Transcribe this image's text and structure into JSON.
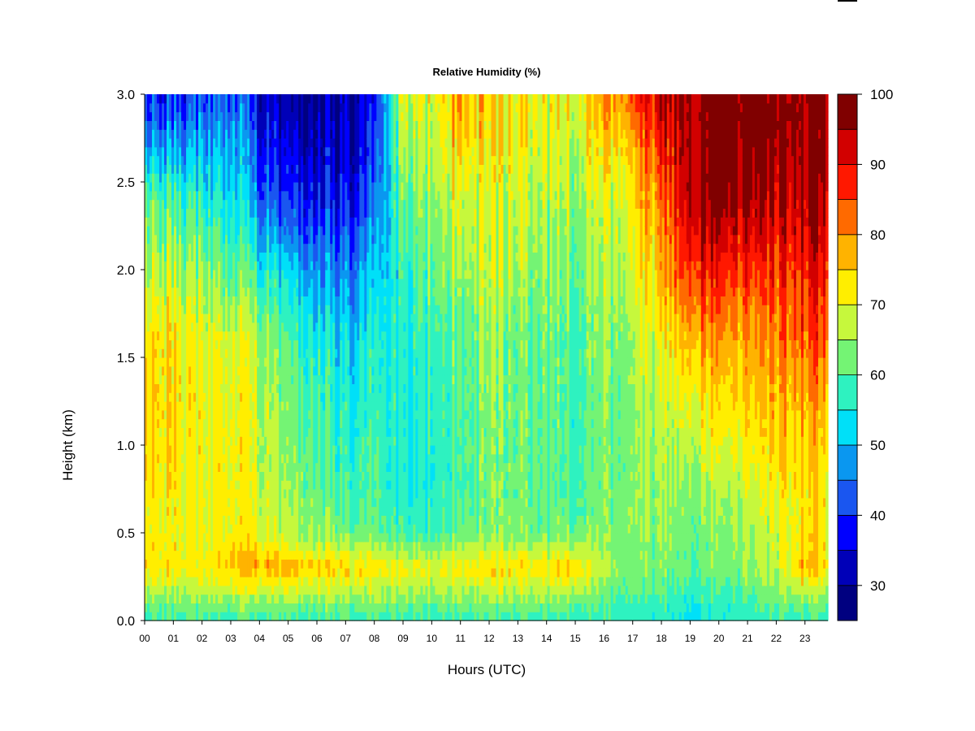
{
  "chart_data": {
    "type": "heatmap",
    "title": "Relative Humidity (%)",
    "xlabel": "Hours (UTC)",
    "ylabel": "Height (km)",
    "x_ticks": [
      "00",
      "01",
      "02",
      "03",
      "04",
      "05",
      "06",
      "07",
      "08",
      "09",
      "10",
      "11",
      "12",
      "13",
      "14",
      "15",
      "16",
      "17",
      "18",
      "19",
      "20",
      "21",
      "22",
      "23"
    ],
    "xlim": [
      0,
      23.8
    ],
    "ylim": [
      0,
      3.0
    ],
    "y_ticks": [
      "0.0",
      "0.5",
      "1.0",
      "1.5",
      "2.0",
      "2.5",
      "3.0"
    ],
    "colorbar": {
      "levels": [
        25,
        30,
        35,
        40,
        45,
        50,
        55,
        60,
        65,
        70,
        75,
        80,
        85,
        90,
        95,
        100
      ],
      "colors": [
        "#000080",
        "#0000b8",
        "#0000ff",
        "#1a56f0",
        "#0a97f0",
        "#00e0f8",
        "#2ef2c0",
        "#74f474",
        "#c6f83c",
        "#ffee00",
        "#ffb300",
        "#ff6a00",
        "#ff1800",
        "#d20000",
        "#800000"
      ],
      "tick_labels": [
        "30",
        "40",
        "50",
        "60",
        "70",
        "80",
        "90",
        "100"
      ],
      "tick_values": [
        30,
        40,
        50,
        60,
        70,
        80,
        90,
        100
      ]
    },
    "heights_km": [
      0.0,
      0.1,
      0.3,
      0.5,
      0.8,
      1.2,
      1.6,
      2.0,
      2.4,
      2.8,
      3.0
    ],
    "keyframes": [
      {
        "hour": 0.0,
        "rh": [
          58,
          63,
          74,
          72,
          74,
          75,
          74,
          67,
          62,
          45,
          40
        ]
      },
      {
        "hour": 1.0,
        "rh": [
          58,
          63,
          73,
          72,
          73,
          74,
          74,
          67,
          60,
          45,
          40
        ]
      },
      {
        "hour": 2.0,
        "rh": [
          58,
          63,
          72,
          70,
          70,
          70,
          69,
          63,
          55,
          45,
          40
        ]
      },
      {
        "hour": 3.0,
        "rh": [
          58,
          64,
          77,
          72,
          73,
          72,
          70,
          62,
          55,
          50,
          45
        ]
      },
      {
        "hour": 4.0,
        "rh": [
          58,
          64,
          78,
          70,
          68,
          68,
          66,
          57,
          45,
          38,
          35
        ]
      },
      {
        "hour": 5.0,
        "rh": [
          58,
          64,
          77,
          67,
          64,
          63,
          60,
          52,
          40,
          33,
          30
        ]
      },
      {
        "hour": 6.0,
        "rh": [
          58,
          64,
          75,
          64,
          62,
          60,
          56,
          48,
          38,
          32,
          30
        ]
      },
      {
        "hour": 7.0,
        "rh": [
          58,
          63,
          74,
          62,
          58,
          55,
          52,
          45,
          37,
          32,
          30
        ]
      },
      {
        "hour": 8.0,
        "rh": [
          58,
          63,
          73,
          61,
          59,
          57,
          55,
          50,
          42,
          38,
          35
        ]
      },
      {
        "hour": 9.0,
        "rh": [
          58,
          62,
          71,
          58,
          55,
          55,
          55,
          56,
          60,
          66,
          68
        ]
      },
      {
        "hour": 10.0,
        "rh": [
          58,
          62,
          71,
          58,
          56,
          57,
          59,
          62,
          65,
          68,
          70
        ]
      },
      {
        "hour": 11.0,
        "rh": [
          58,
          63,
          73,
          62,
          60,
          60,
          61,
          66,
          70,
          78,
          80
        ]
      },
      {
        "hour": 12.0,
        "rh": [
          58,
          63,
          73,
          62,
          62,
          63,
          64,
          67,
          68,
          72,
          73
        ]
      },
      {
        "hour": 13.0,
        "rh": [
          58,
          63,
          74,
          63,
          62,
          62,
          62,
          66,
          69,
          73,
          74
        ]
      },
      {
        "hour": 14.0,
        "rh": [
          58,
          63,
          73,
          62,
          61,
          61,
          61,
          63,
          66,
          69,
          70
        ]
      },
      {
        "hour": 15.0,
        "rh": [
          58,
          62,
          76,
          62,
          60,
          60,
          60,
          63,
          66,
          70,
          72
        ]
      },
      {
        "hour": 16.0,
        "rh": [
          58,
          60,
          66,
          63,
          62,
          62,
          63,
          65,
          68,
          74,
          78
        ]
      },
      {
        "hour": 17.0,
        "rh": [
          57,
          59,
          63,
          64,
          64,
          64,
          66,
          69,
          73,
          80,
          85
        ]
      },
      {
        "hour": 18.0,
        "rh": [
          56,
          58,
          62,
          63,
          64,
          66,
          70,
          75,
          80,
          88,
          92
        ]
      },
      {
        "hour": 19.0,
        "rh": [
          55,
          57,
          62,
          63,
          66,
          72,
          80,
          90,
          98,
          99,
          100
        ]
      },
      {
        "hour": 20.0,
        "rh": [
          55,
          57,
          62,
          63,
          67,
          73,
          79,
          88,
          98,
          100,
          100
        ]
      },
      {
        "hour": 21.0,
        "rh": [
          57,
          59,
          64,
          65,
          69,
          74,
          78,
          86,
          96,
          100,
          100
        ]
      },
      {
        "hour": 22.0,
        "rh": [
          58,
          61,
          67,
          68,
          72,
          76,
          80,
          86,
          92,
          100,
          100
        ]
      },
      {
        "hour": 23.0,
        "rh": [
          58,
          63,
          78,
          74,
          74,
          78,
          85,
          90,
          97,
          100,
          100
        ]
      },
      {
        "hour": 23.8,
        "rh": [
          58,
          63,
          73,
          72,
          73,
          77,
          84,
          89,
          96,
          100,
          100
        ]
      }
    ]
  }
}
